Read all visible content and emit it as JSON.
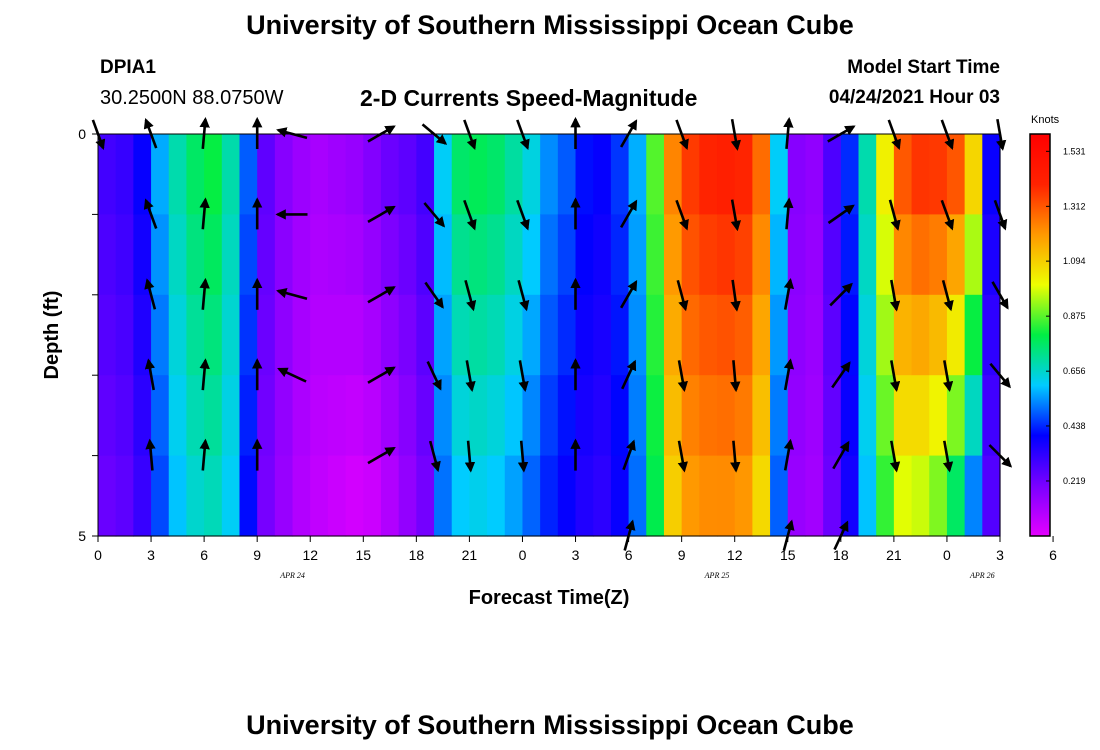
{
  "header": {
    "title": "University of Southern Mississippi Ocean Cube",
    "station_id": "DPIA1",
    "coords": "30.2500N  88.0750W",
    "subtitle": "2-D Currents Speed-Magnitude",
    "model_label": "Model Start Time",
    "model_time": "04/24/2021 Hour 03"
  },
  "footer": {
    "title": "University of Southern Mississippi Ocean Cube"
  },
  "colorbar": {
    "units": "Knots",
    "ticks": [
      "1.531",
      "1.312",
      "1.094",
      "0.875",
      "0.656",
      "0.438",
      "0.219"
    ],
    "tick_values": [
      1.531,
      1.312,
      1.094,
      0.875,
      0.656,
      0.438,
      0.219
    ],
    "min": 0.0,
    "max": 1.6,
    "stops": [
      "#e400ff",
      "#7a00ff",
      "#0000ff",
      "#00ccff",
      "#00ee44",
      "#eeff00",
      "#ff9900",
      "#ff2200",
      "#ff0000"
    ]
  },
  "chart_data": {
    "type": "heatmap",
    "title": "2-D Currents Speed-Magnitude",
    "xlabel": "Forecast Time(Z)",
    "ylabel": "Depth (ft)",
    "x_range_hours": [
      0,
      51
    ],
    "y_range": [
      0,
      5
    ],
    "x_tick_labels": [
      "0",
      "3",
      "6",
      "9",
      "12",
      "15",
      "18",
      "21",
      "0",
      "3",
      "6",
      "9",
      "12",
      "15",
      "18",
      "21",
      "0",
      "3",
      "6"
    ],
    "y_tick_labels": [
      "0",
      "5"
    ],
    "date_labels": [
      {
        "label": "APR 24",
        "hour": 11
      },
      {
        "label": "APR 25",
        "hour": 35
      },
      {
        "label": "APR 26",
        "hour": 50
      }
    ],
    "surface_speed_by_hour": [
      0.3,
      0.32,
      0.4,
      0.58,
      0.7,
      0.78,
      0.82,
      0.7,
      0.5,
      0.25,
      0.18,
      0.14,
      0.12,
      0.14,
      0.16,
      0.2,
      0.24,
      0.26,
      0.3,
      0.62,
      0.78,
      0.8,
      0.78,
      0.72,
      0.65,
      0.55,
      0.5,
      0.42,
      0.4,
      0.46,
      0.58,
      0.88,
      1.25,
      1.38,
      1.42,
      1.44,
      1.42,
      1.3,
      0.62,
      0.18,
      0.16,
      0.28,
      0.45,
      0.7,
      1.05,
      1.35,
      1.42,
      1.42,
      1.38,
      1.15,
      0.4
    ],
    "bottom_speed_by_hour": [
      0.22,
      0.24,
      0.3,
      0.46,
      0.58,
      0.64,
      0.66,
      0.6,
      0.4,
      0.2,
      0.14,
      0.09,
      0.06,
      0.04,
      0.02,
      0.03,
      0.08,
      0.14,
      0.2,
      0.5,
      0.58,
      0.6,
      0.58,
      0.54,
      0.48,
      0.42,
      0.38,
      0.34,
      0.32,
      0.38,
      0.5,
      0.78,
      1.08,
      1.18,
      1.2,
      1.2,
      1.18,
      1.05,
      0.48,
      0.14,
      0.12,
      0.22,
      0.36,
      0.58,
      0.82,
      0.95,
      0.92,
      0.85,
      0.7,
      0.46,
      0.25
    ],
    "vector_depths": [
      0,
      1,
      2,
      3,
      4,
      5
    ],
    "vectors": [
      {
        "hour": 0,
        "angles": [
          160
        ]
      },
      {
        "hour": 3,
        "angles": [
          -20,
          -20,
          -15,
          -10,
          -5
        ]
      },
      {
        "hour": 6,
        "angles": [
          5,
          5,
          5,
          5,
          5
        ]
      },
      {
        "hour": 9,
        "angles": [
          0,
          0,
          0,
          0,
          0
        ]
      },
      {
        "hour": 11,
        "angles": [
          -75,
          -90,
          -75,
          -65
        ]
      },
      {
        "hour": 16,
        "angles": [
          60,
          60,
          60,
          60,
          60
        ]
      },
      {
        "hour": 19,
        "angles": [
          130,
          140,
          145,
          155,
          165
        ]
      },
      {
        "hour": 21,
        "angles": [
          160,
          160,
          165,
          170,
          175
        ]
      },
      {
        "hour": 24,
        "angles": [
          160,
          160,
          165,
          170,
          175
        ]
      },
      {
        "hour": 27,
        "angles": [
          0,
          0,
          0,
          0,
          0
        ]
      },
      {
        "hour": 30,
        "angles": [
          30,
          30,
          30,
          25,
          20,
          15
        ]
      },
      {
        "hour": 33,
        "angles": [
          160,
          160,
          165,
          170,
          170
        ]
      },
      {
        "hour": 36,
        "angles": [
          170,
          170,
          172,
          175,
          175
        ]
      },
      {
        "hour": 39,
        "angles": [
          5,
          5,
          10,
          10,
          10,
          15
        ]
      },
      {
        "hour": 42,
        "angles": [
          60,
          55,
          45,
          35,
          30,
          25
        ]
      },
      {
        "hour": 45,
        "angles": [
          160,
          165,
          170,
          170,
          170
        ]
      },
      {
        "hour": 48,
        "angles": [
          160,
          160,
          165,
          170,
          170
        ]
      },
      {
        "hour": 51,
        "angles": [
          170,
          160,
          150,
          140,
          135
        ]
      }
    ]
  }
}
